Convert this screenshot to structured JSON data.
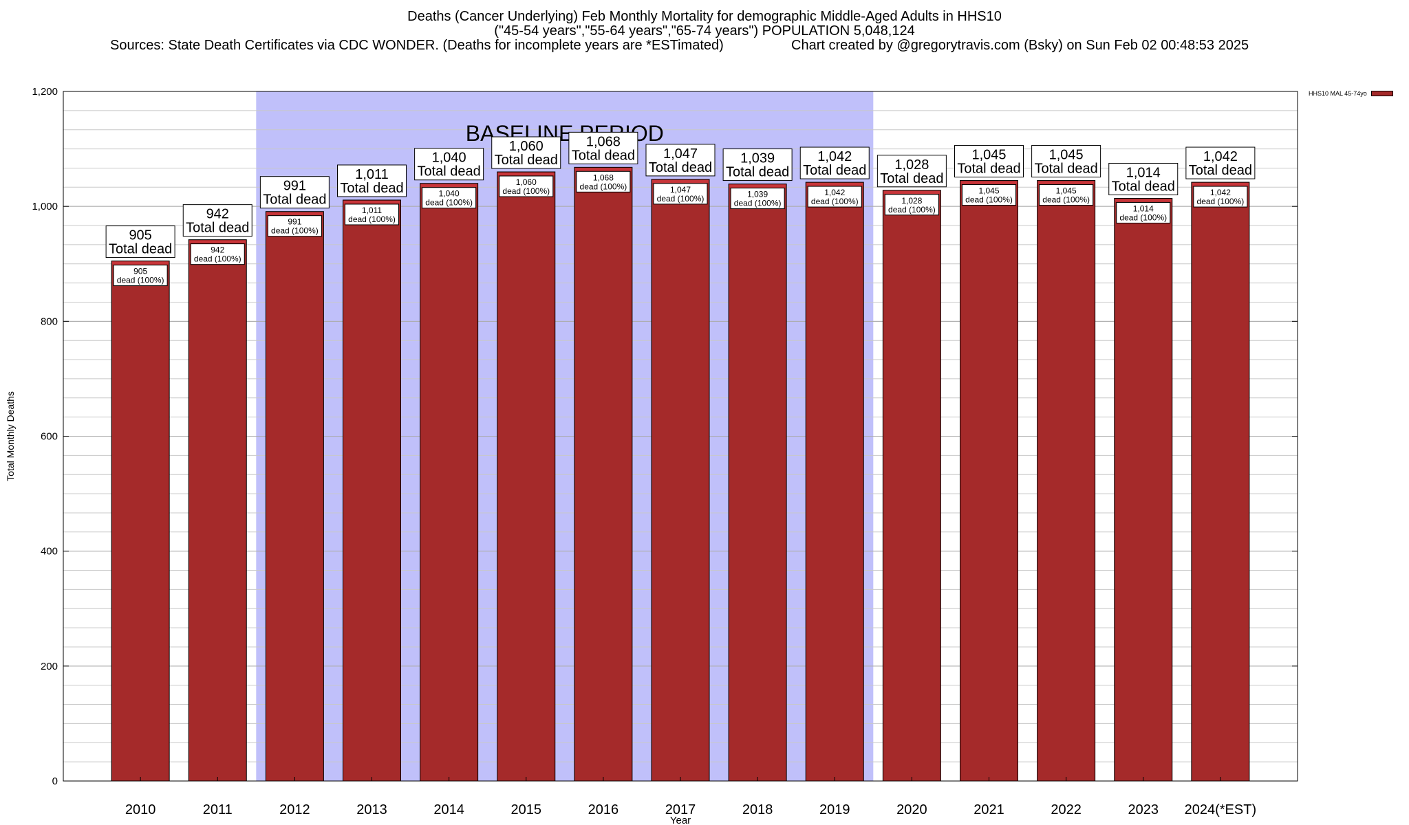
{
  "header": {
    "title_line1": "Deaths (Cancer Underlying) Feb Monthly Mortality for demographic Middle-Aged Adults in HHS10",
    "title_line2": "(\"45-54 years\",\"55-64 years\",\"65-74 years\") POPULATION 5,048,124",
    "sources": "Sources: State Death Certificates via CDC WONDER. (Deaths for incomplete years are *ESTimated)",
    "credit": "Chart created by @gregorytravis.com (Bsky) on Sun Feb 02 00:48:53 2025"
  },
  "chart_data": {
    "type": "bar",
    "xlabel": "Year",
    "ylabel": "Total Monthly Deaths",
    "ylim": [
      0,
      1200
    ],
    "yticks": [
      0,
      200,
      400,
      600,
      800,
      1000,
      1200
    ],
    "ytick_labels": [
      "0",
      "200",
      "400",
      "600",
      "800",
      "1,000",
      "1,200"
    ],
    "grid": true,
    "legend_position": "top-right",
    "categories": [
      "2010",
      "2011",
      "2012",
      "2013",
      "2014",
      "2015",
      "2016",
      "2017",
      "2018",
      "2019",
      "2020",
      "2021",
      "2022",
      "2023",
      "2024(*EST)"
    ],
    "series": [
      {
        "name": "HHS10 MAL 45-74yo",
        "values": [
          905,
          942,
          991,
          1011,
          1040,
          1060,
          1068,
          1047,
          1039,
          1042,
          1028,
          1045,
          1045,
          1014,
          1042
        ],
        "color": "#a52a2a"
      }
    ],
    "total_labels": [
      "905",
      "942",
      "991",
      "1,011",
      "1,040",
      "1,060",
      "1,068",
      "1,047",
      "1,039",
      "1,042",
      "1,028",
      "1,045",
      "1,045",
      "1,014",
      "1,042"
    ],
    "total_suffix": "Total dead",
    "inner_labels": [
      "905",
      "942",
      "991",
      "1,011",
      "1,040",
      "1,060",
      "1,068",
      "1,047",
      "1,039",
      "1,042",
      "1,028",
      "1,045",
      "1,045",
      "1,014",
      "1,042"
    ],
    "inner_suffix": "dead (100%)",
    "baseline": {
      "label": "BASELINE PERIOD",
      "start": "2012",
      "end": "2019",
      "color": "#c0c0fa"
    },
    "bar_top_color": "#c8353a",
    "grid_color": "#c8c8c8"
  }
}
